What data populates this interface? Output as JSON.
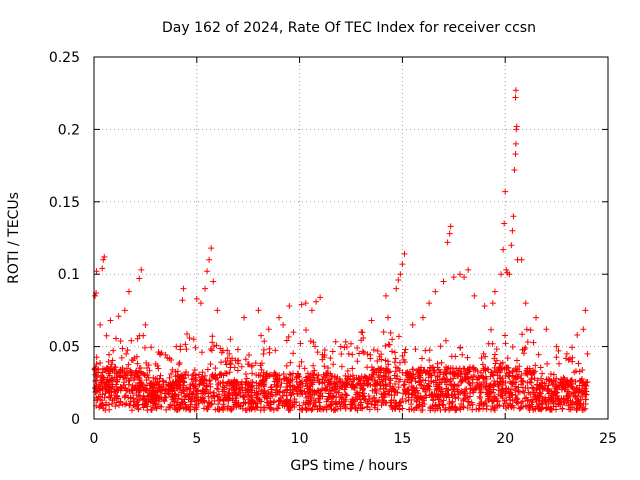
{
  "chart_data": {
    "type": "scatter",
    "title": "Day 162 of 2024, Rate Of TEC Index for receiver ccsn",
    "xlabel": "GPS time / hours",
    "ylabel": "ROTI / TECUs",
    "xlim": [
      0,
      25
    ],
    "ylim": [
      0,
      0.25
    ],
    "xticks": [
      0,
      5,
      10,
      15,
      20,
      25
    ],
    "yticks": [
      0,
      0.05,
      0.1,
      0.15,
      0.2,
      0.25
    ],
    "xtick_labels": [
      "0",
      "5",
      "10",
      "15",
      "20",
      "25"
    ],
    "ytick_labels": [
      "0",
      "0.05",
      "0.1",
      "0.15",
      "0.2",
      "0.25"
    ],
    "grid": true,
    "marker": "+",
    "series_color": "#ff0000",
    "series": [
      {
        "name": "ROTI",
        "points": [
          [
            0.05,
            0.085
          ],
          [
            0.1,
            0.087
          ],
          [
            0.12,
            0.102
          ],
          [
            0.4,
            0.104
          ],
          [
            0.45,
            0.11
          ],
          [
            0.5,
            0.112
          ],
          [
            0.3,
            0.065
          ],
          [
            0.8,
            0.068
          ],
          [
            1.2,
            0.071
          ],
          [
            1.5,
            0.075
          ],
          [
            1.7,
            0.088
          ],
          [
            2.2,
            0.097
          ],
          [
            2.3,
            0.103
          ],
          [
            2.5,
            0.065
          ],
          [
            3.0,
            0.038
          ],
          [
            3.2,
            0.045
          ],
          [
            4.0,
            0.05
          ],
          [
            4.2,
            0.048
          ],
          [
            4.3,
            0.082
          ],
          [
            4.35,
            0.09
          ],
          [
            5.0,
            0.083
          ],
          [
            5.2,
            0.08
          ],
          [
            5.4,
            0.09
          ],
          [
            5.5,
            0.102
          ],
          [
            5.6,
            0.11
          ],
          [
            5.7,
            0.118
          ],
          [
            5.8,
            0.095
          ],
          [
            6.0,
            0.075
          ],
          [
            6.5,
            0.042
          ],
          [
            7.0,
            0.048
          ],
          [
            7.3,
            0.07
          ],
          [
            8.0,
            0.075
          ],
          [
            8.5,
            0.062
          ],
          [
            9.0,
            0.07
          ],
          [
            9.2,
            0.065
          ],
          [
            9.5,
            0.078
          ],
          [
            9.7,
            0.06
          ],
          [
            10.1,
            0.079
          ],
          [
            10.3,
            0.08
          ],
          [
            10.6,
            0.075
          ],
          [
            10.8,
            0.081
          ],
          [
            11.0,
            0.084
          ],
          [
            11.5,
            0.042
          ],
          [
            12.0,
            0.05
          ],
          [
            12.5,
            0.052
          ],
          [
            13.0,
            0.06
          ],
          [
            13.5,
            0.068
          ],
          [
            14.2,
            0.085
          ],
          [
            14.3,
            0.07
          ],
          [
            14.5,
            0.055
          ],
          [
            14.7,
            0.09
          ],
          [
            14.8,
            0.096
          ],
          [
            14.9,
            0.1
          ],
          [
            15.0,
            0.107
          ],
          [
            15.1,
            0.114
          ],
          [
            15.5,
            0.065
          ],
          [
            16.0,
            0.07
          ],
          [
            16.3,
            0.08
          ],
          [
            16.6,
            0.088
          ],
          [
            17.0,
            0.095
          ],
          [
            17.2,
            0.122
          ],
          [
            17.3,
            0.128
          ],
          [
            17.35,
            0.133
          ],
          [
            17.5,
            0.098
          ],
          [
            17.8,
            0.1
          ],
          [
            18.0,
            0.098
          ],
          [
            18.2,
            0.103
          ],
          [
            18.5,
            0.085
          ],
          [
            19.0,
            0.078
          ],
          [
            19.4,
            0.08
          ],
          [
            19.5,
            0.088
          ],
          [
            19.8,
            0.1
          ],
          [
            19.9,
            0.117
          ],
          [
            19.95,
            0.135
          ],
          [
            20.0,
            0.157
          ],
          [
            20.05,
            0.103
          ],
          [
            20.1,
            0.101
          ],
          [
            20.2,
            0.1
          ],
          [
            20.3,
            0.12
          ],
          [
            20.35,
            0.13
          ],
          [
            20.4,
            0.14
          ],
          [
            20.45,
            0.172
          ],
          [
            20.5,
            0.183
          ],
          [
            20.52,
            0.19
          ],
          [
            20.54,
            0.2
          ],
          [
            20.56,
            0.202
          ],
          [
            20.5,
            0.222
          ],
          [
            20.52,
            0.227
          ],
          [
            20.6,
            0.11
          ],
          [
            20.8,
            0.11
          ],
          [
            21.0,
            0.08
          ],
          [
            21.5,
            0.07
          ],
          [
            22.0,
            0.062
          ],
          [
            22.5,
            0.05
          ],
          [
            23.0,
            0.045
          ],
          [
            23.5,
            0.058
          ],
          [
            23.8,
            0.062
          ],
          [
            23.9,
            0.075
          ],
          [
            24.0,
            0.045
          ]
        ]
      }
    ],
    "band_note": "dense band of points between ~0.005 and ~0.06 across 0-24 h"
  }
}
